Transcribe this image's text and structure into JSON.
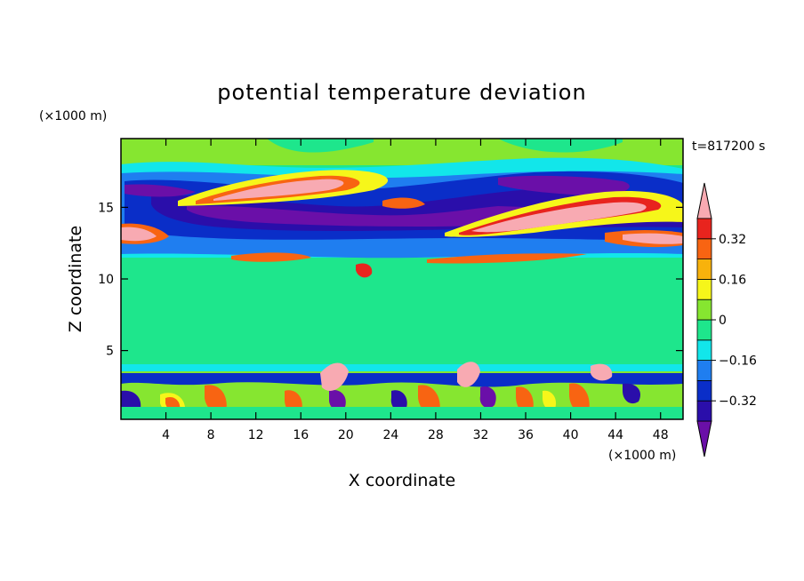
{
  "chart_data": {
    "type": "heatmap",
    "title": "potential temperature deviation",
    "xlabel": "X coordinate",
    "ylabel": "Z coordinate",
    "x_unit": "(×1000 m)",
    "y_unit": "(×1000 m)",
    "time_label": "t=817200 s",
    "xlim": [
      0,
      50
    ],
    "ylim": [
      0.2,
      19.8
    ],
    "x_ticks": [
      4,
      8,
      12,
      16,
      20,
      24,
      28,
      32,
      36,
      40,
      44,
      48
    ],
    "y_ticks": [
      5,
      10,
      15
    ],
    "colorbar": {
      "levels": [
        -0.4,
        -0.32,
        -0.24,
        -0.16,
        -0.08,
        0,
        0.08,
        0.16,
        0.24,
        0.32,
        0.4
      ],
      "labeled_ticks": [
        0.32,
        0.16,
        0,
        -0.16,
        -0.32
      ],
      "colors": [
        "#6a0fa8",
        "#2a0eaa",
        "#0a2ec8",
        "#1f7ef0",
        "#12e6ea",
        "#1ee68c",
        "#86e630",
        "#f6f61a",
        "#f8b20c",
        "#f86412",
        "#e8241e",
        "#f8aab2"
      ],
      "extend": "both"
    },
    "bands": [
      {
        "z_range": [
          0.2,
          3.6
        ],
        "description_value": "mixed -0.4 to 0.4"
      },
      {
        "z_range": [
          3.6,
          4.2
        ],
        "value": -0.08
      },
      {
        "z_range": [
          4.2,
          11.0
        ],
        "value": 0.04
      },
      {
        "z_range": [
          11.0,
          12.6
        ],
        "value": -0.08
      },
      {
        "z_range": [
          12.6,
          18.0
        ],
        "description_value": "mixed -0.4 to 0.4"
      },
      {
        "z_range": [
          18.0,
          19.8
        ],
        "value": 0.04
      }
    ]
  }
}
